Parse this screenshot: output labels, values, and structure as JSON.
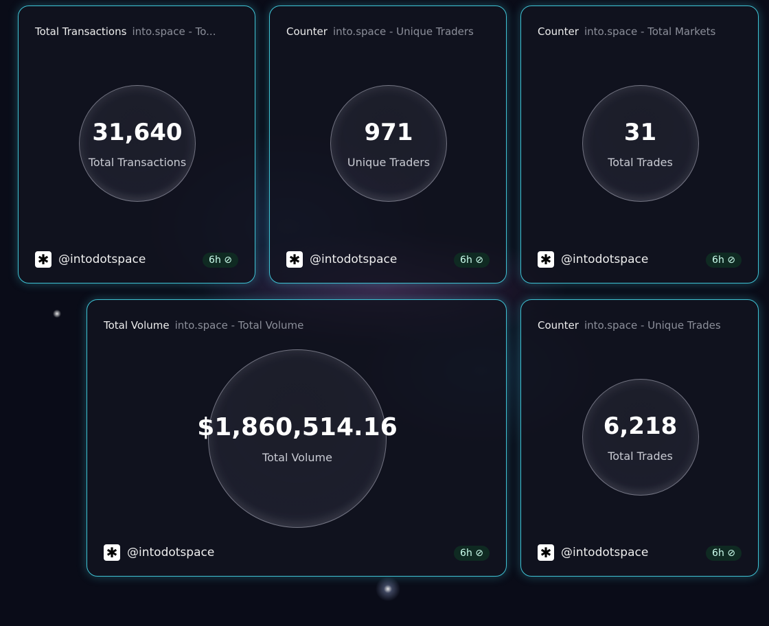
{
  "cards": [
    {
      "title": "Total Transactions",
      "subtitle": "into.space - To...",
      "value": "31,640",
      "label": "Total Transactions",
      "handle": "@intodotspace",
      "badge": "6h ⊘"
    },
    {
      "title": "Counter",
      "subtitle": "into.space - Unique Traders",
      "value": "971",
      "label": "Unique Traders",
      "handle": "@intodotspace",
      "badge": "6h ⊘"
    },
    {
      "title": "Counter",
      "subtitle": "into.space - Total Markets",
      "value": "31",
      "label": "Total Trades",
      "handle": "@intodotspace",
      "badge": "6h ⊘"
    },
    {
      "title": "Total Volume",
      "subtitle": "into.space - Total Volume",
      "value": "$1,860,514.16",
      "label": "Total Volume",
      "handle": "@intodotspace",
      "badge": "6h ⊘"
    },
    {
      "title": "Counter",
      "subtitle": "into.space - Unique Trades",
      "value": "6,218",
      "label": "Total Trades",
      "handle": "@intodotspace",
      "badge": "6h ⊘"
    }
  ],
  "accent": "#3fc4d6"
}
